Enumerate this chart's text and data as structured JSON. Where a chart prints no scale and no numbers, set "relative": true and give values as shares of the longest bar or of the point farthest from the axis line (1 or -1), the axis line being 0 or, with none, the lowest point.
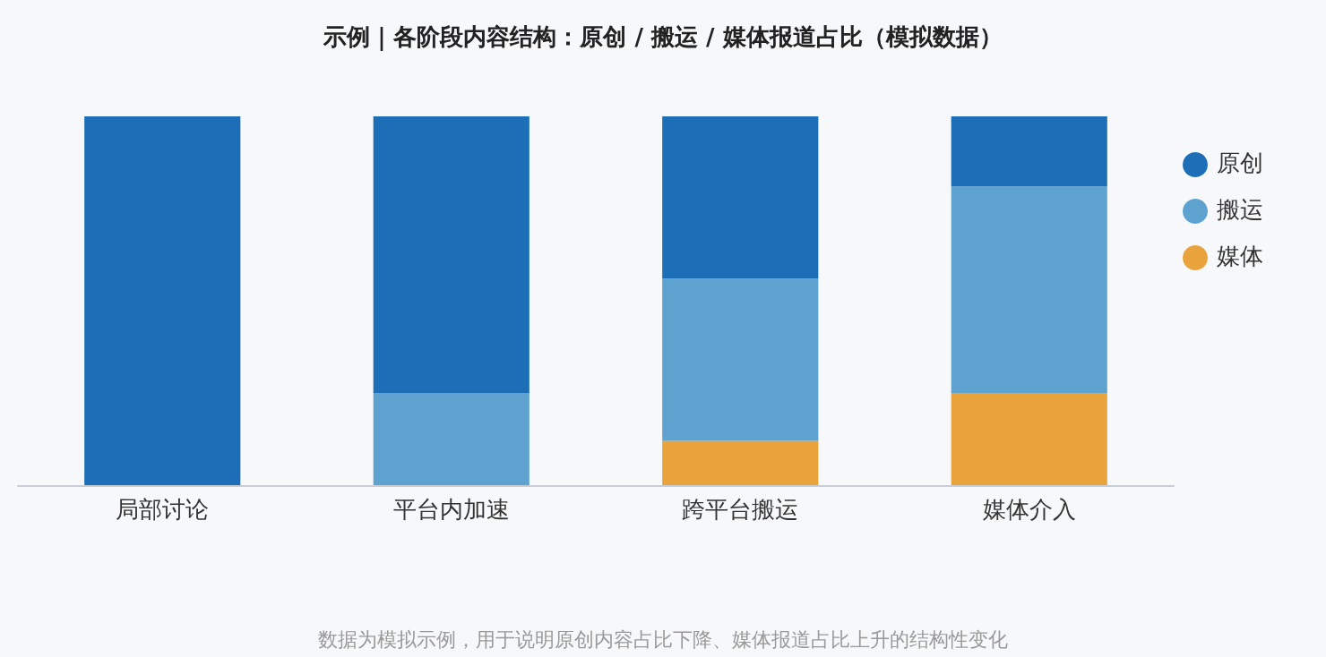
{
  "chart_data": {
    "type": "bar",
    "title": "示例｜各阶段内容结构：原创 / 搬运 / 媒体报道占比（模拟数据）",
    "categories": [
      "局部讨论",
      "平台内加速",
      "跨平台搬运",
      "媒体介入"
    ],
    "stacked": true,
    "relative": true,
    "legend": "right",
    "series": [
      {
        "name": "媒体",
        "color": "#e8a33d",
        "values": [
          0,
          0,
          0.12,
          0.25
        ]
      },
      {
        "name": "搬运",
        "color": "#5ea3d0",
        "values": [
          0,
          0.25,
          0.44,
          0.56
        ]
      },
      {
        "name": "原创",
        "color": "#1c6fb6",
        "values": [
          1,
          0.75,
          0.44,
          0.19
        ]
      }
    ],
    "annotations": [
      "数据为模拟示例，用于说明原创内容占比下降、媒体报道占比上升的结构性变化"
    ]
  }
}
